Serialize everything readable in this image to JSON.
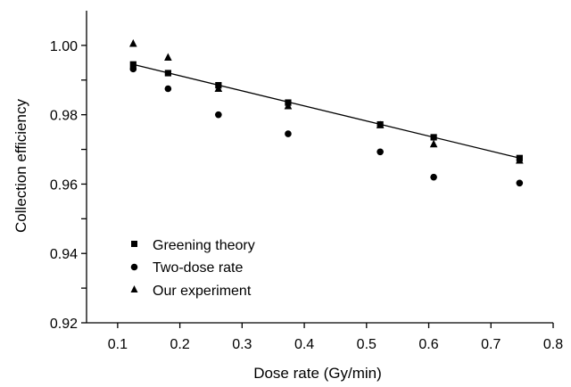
{
  "chart_data": {
    "type": "scatter",
    "title": "",
    "xlabel": "Dose rate (Gy/min)",
    "ylabel": "Collection efficiency",
    "xlim": [
      0.05,
      0.8
    ],
    "ylim": [
      0.92,
      1.01
    ],
    "x_ticks": [
      0.1,
      0.2,
      0.3,
      0.4,
      0.5,
      0.6,
      0.7,
      0.8
    ],
    "x_tick_labels": [
      "0.1",
      "0.2",
      "0.3",
      "0.4",
      "0.5",
      "0.6",
      "0.7",
      "0.8"
    ],
    "y_ticks": [
      0.92,
      0.94,
      0.96,
      0.98,
      1.0
    ],
    "y_tick_labels": [
      "0.92",
      "0.94",
      "0.96",
      "0.98",
      "1.00"
    ],
    "grid": false,
    "legend_position": "bottom-left",
    "colors": {
      "marker": "#000000",
      "axis": "#000000"
    },
    "series": [
      {
        "name": "Greening theory",
        "marker": "square",
        "x": [
          0.125,
          0.181,
          0.262,
          0.374,
          0.522,
          0.608,
          0.746
        ],
        "y": [
          0.9945,
          0.992,
          0.9885,
          0.9835,
          0.9772,
          0.9735,
          0.9675
        ]
      },
      {
        "name": "Two-dose rate",
        "marker": "circle",
        "x": [
          0.125,
          0.181,
          0.262,
          0.374,
          0.522,
          0.608,
          0.746
        ],
        "y": [
          0.9932,
          0.9875,
          0.98,
          0.9745,
          0.9693,
          0.962,
          0.9603
        ]
      },
      {
        "name": "Our experiment",
        "marker": "triangle",
        "x": [
          0.125,
          0.181,
          0.262,
          0.374,
          0.522,
          0.608,
          0.746
        ],
        "y": [
          1.0005,
          0.9965,
          0.9875,
          0.9825,
          0.977,
          0.9715,
          0.9668
        ]
      }
    ],
    "fit_line": {
      "x": [
        0.125,
        0.746
      ],
      "y": [
        0.9945,
        0.9675
      ]
    }
  }
}
